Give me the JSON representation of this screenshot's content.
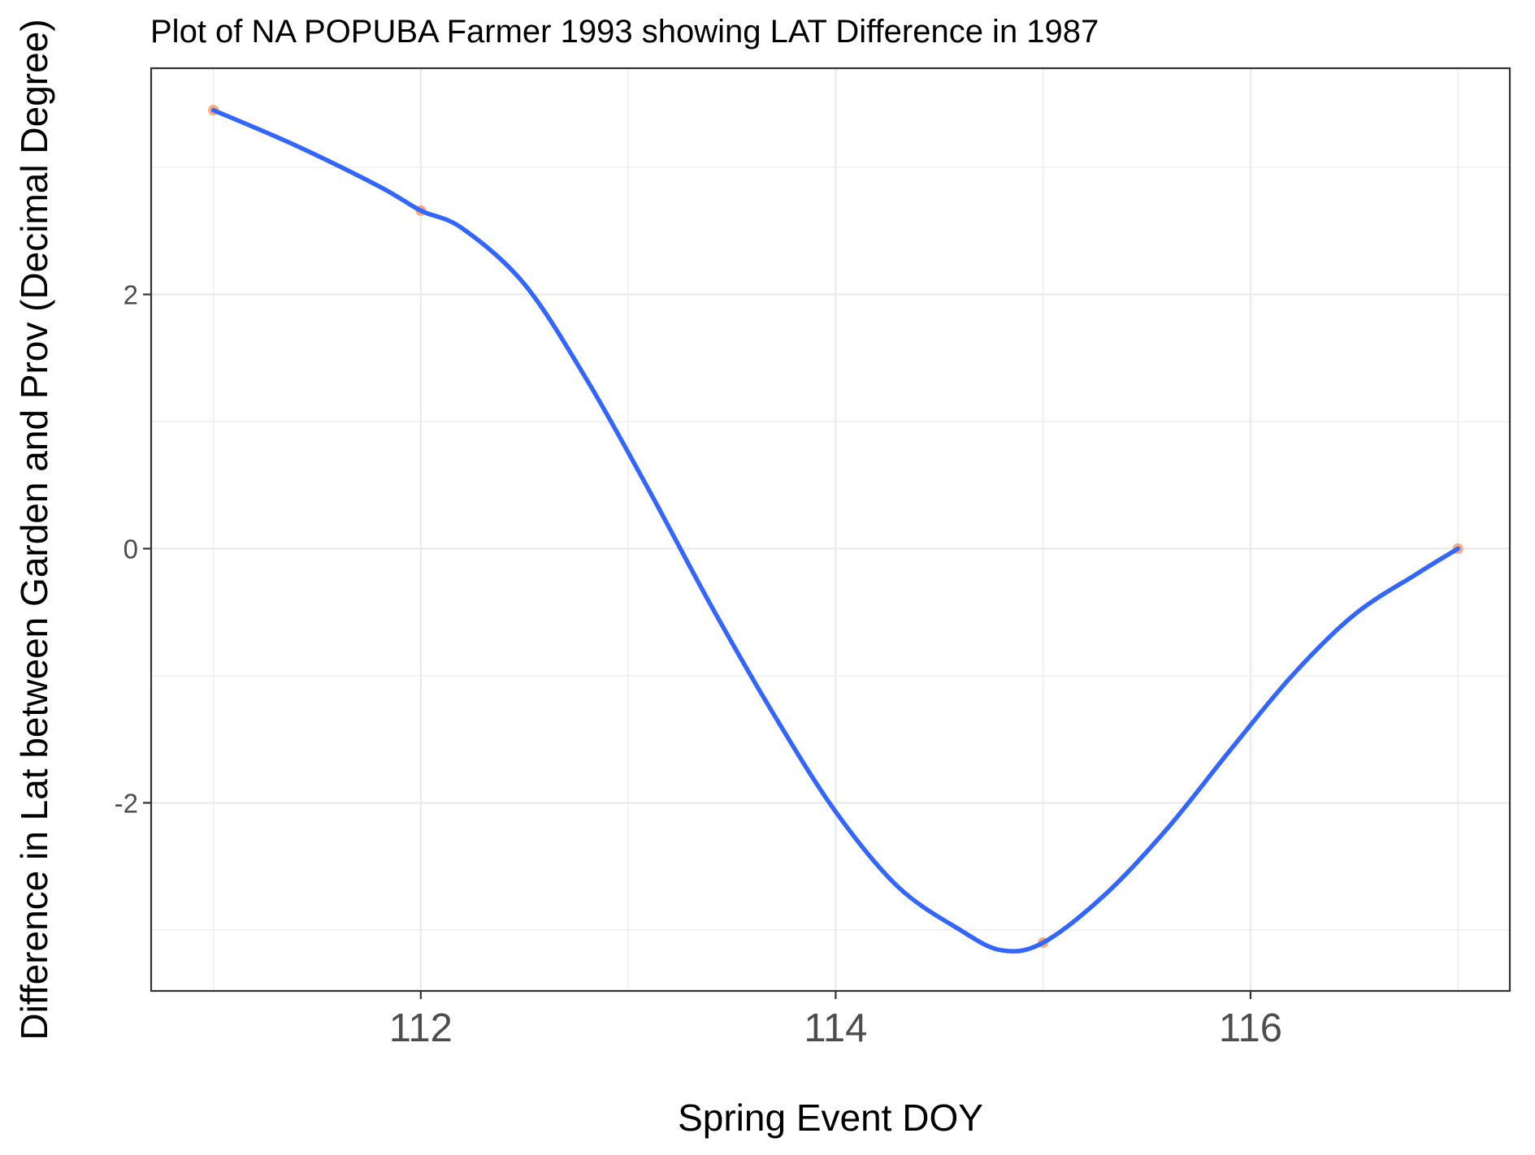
{
  "chart_data": {
    "type": "line",
    "title": "Plot of NA POPUBA Farmer 1993 showing LAT Difference in 1987",
    "xlabel": "Spring Event DOY",
    "ylabel": "Difference in Lat between Garden and Prov (Decimal Degree)",
    "xlim": [
      110.7,
      117.25
    ],
    "ylim": [
      -3.48,
      3.78
    ],
    "x_ticks": [
      112,
      114,
      116
    ],
    "x_tick_labels": [
      "112",
      "114",
      "116"
    ],
    "y_ticks": [
      -2,
      0,
      2
    ],
    "y_tick_labels": [
      "-2",
      "0",
      "2"
    ],
    "grid": true,
    "legend": "none",
    "series": [
      {
        "kind": "points",
        "color": "#f8a16a",
        "x": [
          111,
          112,
          115,
          117
        ],
        "y": [
          3.45,
          2.66,
          -3.1,
          0.0
        ]
      },
      {
        "kind": "smooth",
        "color": "#3366ff",
        "x": [
          111,
          111.4,
          111.8,
          112,
          112.2,
          112.5,
          112.8,
          113.1,
          113.4,
          113.7,
          114,
          114.3,
          114.6,
          114.8,
          115,
          115.3,
          115.6,
          115.9,
          116.2,
          116.5,
          116.8,
          117
        ],
        "y": [
          3.45,
          3.17,
          2.85,
          2.66,
          2.52,
          2.08,
          1.33,
          0.46,
          -0.45,
          -1.3,
          -2.07,
          -2.66,
          -3.0,
          -3.16,
          -3.1,
          -2.72,
          -2.2,
          -1.59,
          -1.0,
          -0.52,
          -0.2,
          0.0
        ]
      }
    ]
  }
}
